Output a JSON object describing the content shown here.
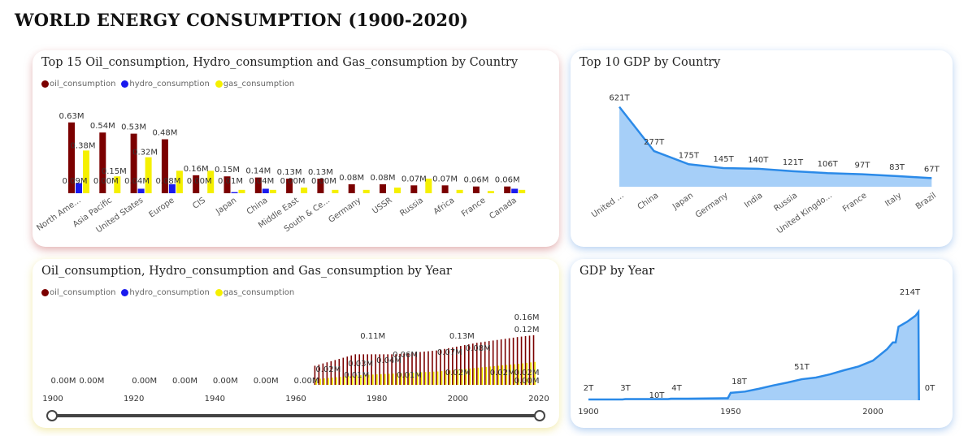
{
  "page_title": "WORLD ENERGY CONSUMPTION (1900-2020)",
  "colors": {
    "oil": "#7b0000",
    "hydro": "#1a1aee",
    "gas": "#f5f000",
    "gdp_line": "#2b8ae8",
    "gdp_fill": "#a6cff8"
  },
  "legend": [
    {
      "label": "oil_consumption",
      "color": "#7b0000"
    },
    {
      "label": "hydro_consumption",
      "color": "#1a1aee"
    },
    {
      "label": "gas_consumption",
      "color": "#f5f000"
    }
  ],
  "chart_data": [
    {
      "type": "bar",
      "title": "Top 15 Oil_consumption, Hydro_consumption and Gas_consumption by Country",
      "categories": [
        "North Ame...",
        "Asia Pacific",
        "United States",
        "Europe",
        "CIS",
        "Japan",
        "China",
        "Middle East",
        "South & Ce...",
        "Germany",
        "USSR",
        "Russia",
        "Africa",
        "France",
        "Canada"
      ],
      "series": [
        {
          "name": "oil_consumption",
          "values": [
            0.63,
            0.54,
            0.53,
            0.48,
            0.16,
            0.15,
            0.14,
            0.13,
            0.13,
            0.08,
            0.08,
            0.07,
            0.07,
            0.06,
            0.06
          ]
        },
        {
          "name": "hydro_consumption",
          "values": [
            0.09,
            0.0,
            0.04,
            0.08,
            0.0,
            0.01,
            0.04,
            0.0,
            0.0,
            0.0,
            0.0,
            0.0,
            0.0,
            0.0,
            0.04
          ]
        },
        {
          "name": "gas_consumption",
          "values": [
            0.38,
            0.15,
            0.32,
            0.2,
            0.2,
            0.03,
            0.03,
            0.05,
            0.03,
            0.03,
            0.05,
            0.13,
            0.03,
            0.02,
            0.03
          ]
        }
      ],
      "oil_labels": [
        "0.63M",
        "0.54M",
        "0.53M",
        "0.48M",
        "0.16M",
        "0.15M",
        "0.14M",
        "0.13M",
        "0.13M",
        "0.08M",
        "0.08M",
        "0.07M",
        "0.07M",
        "0.06M",
        "0.06M"
      ],
      "hydro_labels": [
        "0.09M",
        "0.00M",
        "0.04M",
        "0.08M",
        "0.00M",
        "0.01M",
        "0.04M",
        "0.00M",
        "0.00M",
        "",
        "",
        "",
        "",
        "",
        ""
      ],
      "gas_labels": [
        "0.38M",
        "0.15M",
        "0.32M",
        "",
        "",
        "",
        "",
        "",
        "",
        "",
        "",
        "",
        "",
        "",
        ""
      ],
      "ylim": [
        0,
        0.65
      ]
    },
    {
      "type": "area",
      "title": "Top 10 GDP by Country",
      "categories": [
        "United ...",
        "China",
        "Japan",
        "Germany",
        "India",
        "Russia",
        "United Kingdo...",
        "France",
        "Italy",
        "Brazil"
      ],
      "values": [
        621,
        277,
        175,
        145,
        140,
        121,
        106,
        97,
        83,
        67
      ],
      "labels": [
        "621T",
        "277T",
        "175T",
        "145T",
        "140T",
        "121T",
        "106T",
        "97T",
        "83T",
        "67T"
      ],
      "ylim": [
        0,
        650
      ]
    },
    {
      "type": "bar",
      "title": "Oil_consumption, Hydro_consumption and Gas_consumption by Year",
      "x_ticks": [
        "1900",
        "1920",
        "1940",
        "1960",
        "1980",
        "2000",
        "2020"
      ],
      "xlim": [
        1900,
        2020
      ],
      "zero_labels": [
        {
          "year": 1900,
          "text": "0.00M"
        },
        {
          "year": 1907,
          "text": "0.00M"
        },
        {
          "year": 1920,
          "text": "0.00M"
        },
        {
          "year": 1930,
          "text": "0.00M"
        },
        {
          "year": 1940,
          "text": "0.00M"
        },
        {
          "year": 1950,
          "text": "0.00M"
        },
        {
          "year": 1960,
          "text": "0.00M"
        }
      ],
      "series": [
        {
          "name": "oil_consumption",
          "x": [
            1965,
            1975,
            1985,
            1995,
            2005,
            2015,
            2019
          ],
          "values": [
            0.05,
            0.08,
            0.08,
            0.09,
            0.11,
            0.125,
            0.13
          ]
        },
        {
          "name": "gas_consumption",
          "x": [
            1965,
            1975,
            1985,
            1995,
            2005,
            2015,
            2019
          ],
          "values": [
            0.015,
            0.025,
            0.03,
            0.035,
            0.045,
            0.055,
            0.06
          ]
        }
      ],
      "value_labels": [
        {
          "x": 1979,
          "text": "0.11M"
        },
        {
          "x": 2001,
          "text": "0.13M"
        },
        {
          "x": 2017,
          "text": "0.16M"
        },
        {
          "x": 2017,
          "text": "0.12M"
        },
        {
          "x": 1987,
          "text": "0.06M"
        },
        {
          "x": 1998,
          "text": "0.07M"
        },
        {
          "x": 2005,
          "text": "0.08M"
        },
        {
          "x": 1976,
          "text": "0.03M"
        },
        {
          "x": 1983,
          "text": "0.04M"
        },
        {
          "x": 1968,
          "text": "0.02M"
        },
        {
          "x": 1975,
          "text": "0.01M"
        },
        {
          "x": 1988,
          "text": "0.01M"
        },
        {
          "x": 2000,
          "text": "0.02M"
        },
        {
          "x": 2011,
          "text": "0.02M"
        },
        {
          "x": 2017,
          "text": "0.02M"
        },
        {
          "x": 2017,
          "text": "0.00M"
        }
      ],
      "ylim": [
        0,
        0.17
      ]
    },
    {
      "type": "area",
      "title": "GDP by Year",
      "x_ticks": [
        "1900",
        "1950",
        "2000"
      ],
      "xlim": [
        1900,
        2020
      ],
      "x": [
        1900,
        1912,
        1913,
        1920,
        1928,
        1929,
        1935,
        1949,
        1950,
        1955,
        1960,
        1965,
        1970,
        1975,
        1980,
        1985,
        1990,
        1995,
        2000,
        2005,
        2007,
        2008,
        2009,
        2012,
        2015,
        2016,
        2016.2
      ],
      "values": [
        2,
        2,
        3,
        3,
        3,
        4,
        4,
        5,
        18,
        21,
        28,
        36,
        43,
        51,
        55,
        63,
        73,
        82,
        96,
        124,
        140,
        140,
        178,
        190,
        205,
        214,
        0
      ],
      "labels": [
        {
          "x": 1900,
          "text": "2T"
        },
        {
          "x": 1913,
          "text": "3T"
        },
        {
          "x": 1924,
          "text": "10T"
        },
        {
          "x": 1931,
          "text": "4T"
        },
        {
          "x": 1953,
          "text": "18T"
        },
        {
          "x": 1975,
          "text": "51T"
        },
        {
          "x": 2013,
          "text": "214T"
        },
        {
          "x": 2020,
          "text": "0T"
        }
      ],
      "ylim": [
        0,
        230
      ]
    }
  ]
}
